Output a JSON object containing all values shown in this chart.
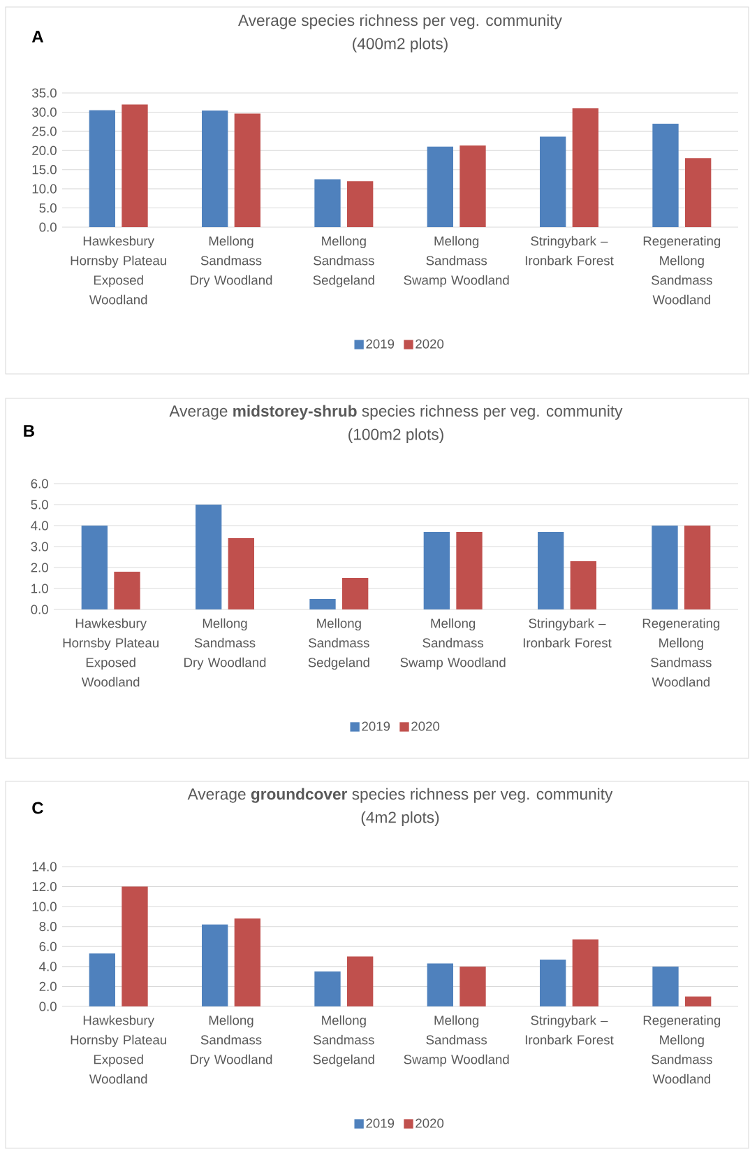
{
  "chart_data": [
    {
      "type": "bar",
      "title": "Average species richness per veg. community",
      "subtitle": "(400m2 plots)",
      "annotations": [
        "A"
      ],
      "categories": [
        "Hawkesbury Hornsby Plateau Exposed Woodland",
        "Mellong Sandmass Dry Woodland",
        "Mellong Sandmass Sedgeland",
        "Mellong Sandmass Swamp Woodland",
        "Stringybark – Ironbark Forest",
        "Regenerating Mellong Sandmass Woodland"
      ],
      "series": [
        {
          "name": "2019",
          "color": "#4f81bd",
          "values": [
            30.5,
            30.4,
            12.5,
            21.0,
            23.6,
            27.0
          ]
        },
        {
          "name": "2020",
          "color": "#c0504d",
          "values": [
            32.0,
            29.6,
            12.0,
            21.3,
            31.0,
            18.0
          ]
        }
      ],
      "ylim": [
        0,
        35
      ],
      "yticks": [
        {
          "value": 0,
          "label": "0.0"
        },
        {
          "value": 5,
          "label": "5.0"
        },
        {
          "value": 10,
          "label": "10.0"
        },
        {
          "value": 15,
          "label": "15.0"
        },
        {
          "value": 20,
          "label": "20.0"
        },
        {
          "value": 25,
          "label": "25.0"
        },
        {
          "value": 30,
          "label": "30.0"
        },
        {
          "value": 35,
          "label": "35.0"
        }
      ],
      "grid": "y",
      "legend": "bottom"
    },
    {
      "type": "bar",
      "title": "Average **midstorey-shrub** species richness per veg. community",
      "subtitle": "(100m2 plots)",
      "annotations": [
        "B"
      ],
      "categories": [
        "Hawkesbury Hornsby Plateau Exposed Woodland",
        "Mellong Sandmass Dry Woodland",
        "Mellong Sandmass Sedgeland",
        "Mellong Sandmass Swamp Woodland",
        "Stringybark – Ironbark Forest",
        "Regenerating Mellong Sandmass Woodland"
      ],
      "series": [
        {
          "name": "2019",
          "color": "#4f81bd",
          "values": [
            4.0,
            5.0,
            0.5,
            3.7,
            3.7,
            4.0
          ]
        },
        {
          "name": "2020",
          "color": "#c0504d",
          "values": [
            1.8,
            3.4,
            1.5,
            3.7,
            2.3,
            4.0
          ]
        }
      ],
      "ylim": [
        0,
        6
      ],
      "yticks": [
        {
          "value": 0,
          "label": "0.0"
        },
        {
          "value": 1,
          "label": "1.0"
        },
        {
          "value": 2,
          "label": "2.0"
        },
        {
          "value": 3,
          "label": "3.0"
        },
        {
          "value": 4,
          "label": "4.0"
        },
        {
          "value": 5,
          "label": "5.0"
        },
        {
          "value": 6,
          "label": "6.0"
        }
      ],
      "grid": "y",
      "legend": "bottom"
    },
    {
      "type": "bar",
      "title": "Average **groundcover** species richness per veg. community",
      "subtitle": "(4m2 plots)",
      "annotations": [
        "C"
      ],
      "categories": [
        "Hawkesbury Hornsby Plateau Exposed Woodland",
        "Mellong Sandmass Dry Woodland",
        "Mellong Sandmass Sedgeland",
        "Mellong Sandmass Swamp Woodland",
        "Stringybark – Ironbark Forest",
        "Regenerating Mellong Sandmass Woodland"
      ],
      "series": [
        {
          "name": "2019",
          "color": "#4f81bd",
          "values": [
            5.3,
            8.2,
            3.5,
            4.3,
            4.7,
            4.0
          ]
        },
        {
          "name": "2020",
          "color": "#c0504d",
          "values": [
            12.0,
            8.8,
            5.0,
            4.0,
            6.7,
            1.0
          ]
        }
      ],
      "ylim": [
        0,
        14
      ],
      "yticks": [
        {
          "value": 0,
          "label": "0.0"
        },
        {
          "value": 2,
          "label": "2.0"
        },
        {
          "value": 4,
          "label": "4.0"
        },
        {
          "value": 6,
          "label": "6.0"
        },
        {
          "value": 8,
          "label": "8.0"
        },
        {
          "value": 10,
          "label": "10.0"
        },
        {
          "value": 12,
          "label": "12.0"
        },
        {
          "value": 14,
          "label": "14.0"
        }
      ],
      "grid": "y",
      "legend": "bottom"
    }
  ]
}
